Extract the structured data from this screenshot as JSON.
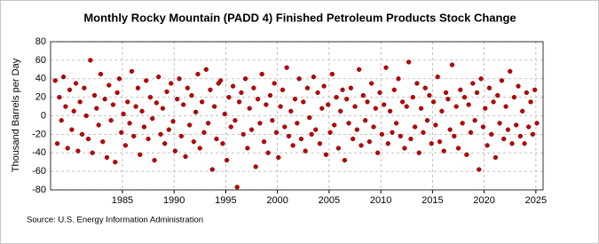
{
  "chart_data": {
    "type": "scatter",
    "title": "Monthly Rocky Mountain (PADD 4) Finished Petroleum Products Stock Change",
    "y_label": "Thousand Barrels per Day",
    "source": "Source: U.S. Energy Information Administration",
    "color": "#c00000",
    "grid": true,
    "xlim": [
      1978.05,
      2025.7
    ],
    "ylim": [
      -80,
      80
    ],
    "xticks": [
      1985,
      1990,
      1995,
      2000,
      2005,
      2010,
      2015,
      2020,
      2025
    ],
    "yticks": [
      -80,
      -60,
      -40,
      -20,
      0,
      20,
      40,
      60,
      80
    ],
    "x": [
      1978.5,
      1978.7,
      1978.9,
      1979.1,
      1979.3,
      1979.5,
      1979.7,
      1979.9,
      1980.1,
      1980.3,
      1980.5,
      1980.7,
      1980.9,
      1981.1,
      1981.3,
      1981.5,
      1981.7,
      1981.9,
      1982.1,
      1982.3,
      1982.5,
      1982.7,
      1982.9,
      1983.1,
      1983.3,
      1983.5,
      1983.7,
      1983.9,
      1984.1,
      1984.3,
      1984.5,
      1984.7,
      1984.9,
      1985.1,
      1985.3,
      1985.5,
      1985.7,
      1985.9,
      1986.1,
      1986.3,
      1986.5,
      1986.7,
      1986.9,
      1987.1,
      1987.3,
      1987.5,
      1987.7,
      1987.9,
      1988.1,
      1988.3,
      1988.5,
      1988.7,
      1988.9,
      1989.1,
      1989.3,
      1989.5,
      1989.7,
      1989.9,
      1990.1,
      1990.3,
      1990.5,
      1990.7,
      1990.9,
      1991.1,
      1991.3,
      1991.5,
      1991.7,
      1991.9,
      1992.1,
      1992.3,
      1992.5,
      1992.7,
      1992.9,
      1993.1,
      1993.3,
      1993.5,
      1993.7,
      1993.9,
      1994.1,
      1994.3,
      1994.5,
      1994.7,
      1994.9,
      1995.1,
      1995.3,
      1995.5,
      1995.7,
      1995.9,
      1996.1,
      1996.3,
      1996.5,
      1996.7,
      1996.9,
      1997.1,
      1997.3,
      1997.5,
      1997.7,
      1997.9,
      1998.1,
      1998.3,
      1998.5,
      1998.7,
      1998.9,
      1999.1,
      1999.3,
      1999.5,
      1999.7,
      1999.9,
      2000.1,
      2000.3,
      2000.5,
      2000.7,
      2000.9,
      2001.1,
      2001.3,
      2001.5,
      2001.7,
      2001.9,
      2002.1,
      2002.3,
      2002.5,
      2002.7,
      2002.9,
      2003.1,
      2003.3,
      2003.5,
      2003.7,
      2003.9,
      2004.1,
      2004.3,
      2004.5,
      2004.7,
      2004.9,
      2005.1,
      2005.3,
      2005.5,
      2005.7,
      2005.9,
      2006.1,
      2006.3,
      2006.5,
      2006.7,
      2006.9,
      2007.1,
      2007.3,
      2007.5,
      2007.7,
      2007.9,
      2008.1,
      2008.3,
      2008.5,
      2008.7,
      2008.9,
      2009.1,
      2009.3,
      2009.5,
      2009.7,
      2009.9,
      2010.1,
      2010.3,
      2010.5,
      2010.7,
      2010.9,
      2011.1,
      2011.3,
      2011.5,
      2011.7,
      2011.9,
      2012.1,
      2012.3,
      2012.5,
      2012.7,
      2012.9,
      2013.1,
      2013.3,
      2013.5,
      2013.7,
      2013.9,
      2014.1,
      2014.3,
      2014.5,
      2014.7,
      2014.9,
      2015.1,
      2015.3,
      2015.5,
      2015.7,
      2015.9,
      2016.1,
      2016.3,
      2016.5,
      2016.7,
      2016.9,
      2017.1,
      2017.3,
      2017.5,
      2017.7,
      2017.9,
      2018.1,
      2018.3,
      2018.5,
      2018.7,
      2018.9,
      2019.1,
      2019.3,
      2019.5,
      2019.7,
      2019.9,
      2020.1,
      2020.3,
      2020.5,
      2020.7,
      2020.9,
      2021.1,
      2021.3,
      2021.5,
      2021.7,
      2021.9,
      2022.1,
      2022.3,
      2022.5,
      2022.7,
      2022.9,
      2023.1,
      2023.3,
      2023.5,
      2023.7,
      2023.9,
      2024.1,
      2024.3,
      2024.5,
      2024.7,
      2024.9,
      2025.1
    ],
    "values": [
      38,
      -30,
      20,
      -5,
      42,
      10,
      -35,
      28,
      -15,
      5,
      35,
      -38,
      15,
      -20,
      30,
      0,
      -25,
      60,
      -40,
      22,
      8,
      -10,
      45,
      -28,
      18,
      -45,
      33,
      -5,
      12,
      -50,
      25,
      40,
      -18,
      2,
      -32,
      15,
      -8,
      48,
      -22,
      10,
      30,
      -42,
      5,
      -12,
      38,
      -25,
      20,
      -3,
      -48,
      14,
      42,
      -20,
      8,
      -30,
      26,
      -15,
      35,
      -6,
      -38,
      18,
      40,
      -22,
      12,
      -44,
      30,
      -10,
      22,
      -28,
      4,
      45,
      -35,
      15,
      -18,
      50,
      -8,
      28,
      -58,
      10,
      -25,
      35,
      38,
      -30,
      2,
      -48,
      20,
      -12,
      32,
      -5,
      -77,
      15,
      25,
      -20,
      40,
      -35,
      8,
      -15,
      30,
      -55,
      18,
      -8,
      45,
      -28,
      12,
      -40,
      22,
      -5,
      35,
      -18,
      -45,
      10,
      28,
      -12,
      52,
      -22,
      5,
      -32,
      18,
      -8,
      40,
      -25,
      15,
      -38,
      30,
      -2,
      -20,
      42,
      -15,
      25,
      -30,
      8,
      32,
      -42,
      12,
      -18,
      45,
      -10,
      20,
      -35,
      5,
      28,
      -48,
      18,
      -8,
      30,
      -25,
      10,
      -15,
      50,
      -32,
      22,
      -5,
      15,
      -28,
      35,
      -12,
      8,
      -40,
      25,
      -20,
      12,
      52,
      -30,
      5,
      -18,
      28,
      -8,
      40,
      -22,
      15,
      -35,
      10,
      58,
      -25,
      20,
      -12,
      35,
      -40,
      8,
      -18,
      30,
      -5,
      22,
      -30,
      15,
      -10,
      42,
      -28,
      5,
      -38,
      25,
      18,
      -15,
      55,
      -22,
      10,
      -35,
      28,
      -8,
      20,
      -42,
      12,
      -18,
      35,
      -5,
      25,
      -58,
      40,
      -12,
      8,
      -32,
      30,
      -20,
      15,
      -45,
      22,
      -8,
      38,
      -25,
      10,
      -15,
      48,
      -30,
      20,
      -10,
      32,
      -22,
      5,
      -30,
      25,
      -12,
      15,
      -20,
      28,
      -8
    ]
  }
}
